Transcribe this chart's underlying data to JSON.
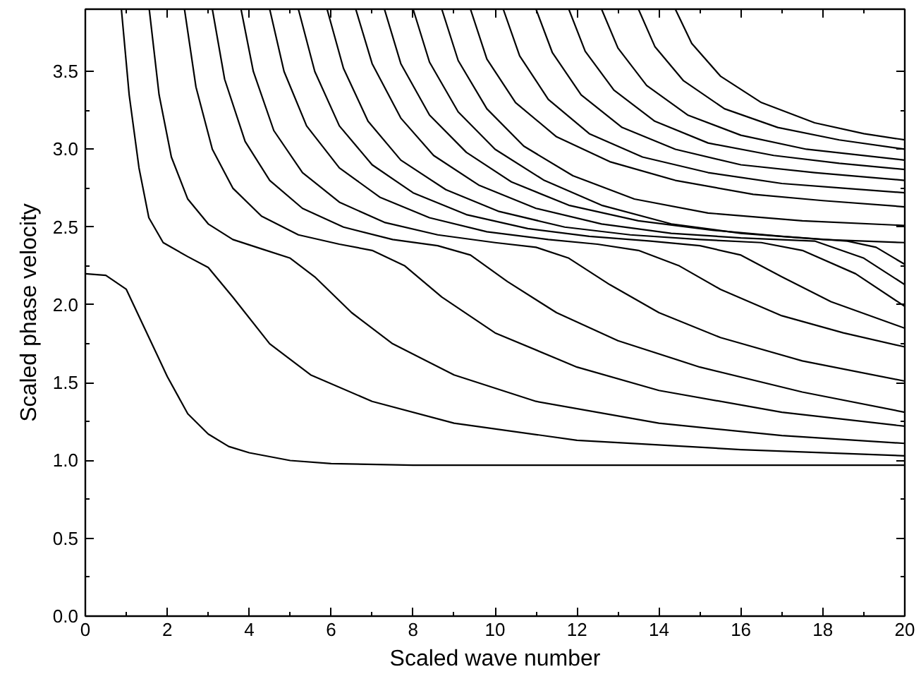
{
  "chart_data": {
    "type": "line",
    "xlabel": "Scaled wave number",
    "ylabel": "Scaled phase velocity",
    "xlim": [
      0,
      20
    ],
    "ylim": [
      0,
      3.9
    ],
    "xticks": [
      0,
      2,
      4,
      6,
      8,
      10,
      12,
      14,
      16,
      18,
      20
    ],
    "yticks": [
      {
        "value": 0,
        "label": "0.0"
      },
      0.5,
      {
        "value": 1,
        "label": "1.0"
      },
      1.5,
      {
        "value": 2,
        "label": "2.0"
      },
      2.5,
      {
        "value": 3,
        "label": "3.0"
      },
      3.5
    ],
    "grid": false,
    "marker": "none",
    "line_style": "solid",
    "series": [
      {
        "color": "#000000",
        "x": [
          0,
          0.5,
          1,
          1.5,
          2,
          2.5,
          3,
          3.5,
          4,
          5,
          6,
          8,
          10,
          14,
          20
        ],
        "values": [
          2.2,
          2.19,
          2.1,
          1.82,
          1.54,
          1.3,
          1.17,
          1.09,
          1.05,
          1.0,
          0.98,
          0.97,
          0.97,
          0.97,
          0.97
        ]
      },
      {
        "color": "#000000",
        "x": [
          0.88,
          1.07,
          1.31,
          1.55,
          1.9,
          2.5,
          3.0,
          3.6,
          4.5,
          5.5,
          7,
          9,
          12,
          16,
          20
        ],
        "values": [
          3.9,
          3.35,
          2.88,
          2.56,
          2.4,
          2.31,
          2.24,
          2.05,
          1.75,
          1.55,
          1.38,
          1.24,
          1.13,
          1.07,
          1.03
        ]
      },
      {
        "color": "#000000",
        "x": [
          1.56,
          1.8,
          2.1,
          2.5,
          3.0,
          3.6,
          4.3,
          5.0,
          5.6,
          6.5,
          7.5,
          9,
          11,
          14,
          17,
          20
        ],
        "values": [
          3.9,
          3.35,
          2.95,
          2.68,
          2.52,
          2.42,
          2.36,
          2.3,
          2.18,
          1.95,
          1.75,
          1.55,
          1.38,
          1.24,
          1.16,
          1.11
        ]
      },
      {
        "color": "#000000",
        "x": [
          2.42,
          2.7,
          3.1,
          3.6,
          4.3,
          5.2,
          6.2,
          7.0,
          7.8,
          8.7,
          10,
          12,
          14,
          17,
          20
        ],
        "values": [
          3.9,
          3.4,
          3.0,
          2.75,
          2.57,
          2.45,
          2.39,
          2.35,
          2.25,
          2.05,
          1.82,
          1.6,
          1.45,
          1.31,
          1.22
        ]
      },
      {
        "color": "#000000",
        "x": [
          3.1,
          3.4,
          3.9,
          4.5,
          5.3,
          6.3,
          7.5,
          8.6,
          9.4,
          10.3,
          11.5,
          13,
          15,
          17.5,
          20
        ],
        "values": [
          3.9,
          3.45,
          3.05,
          2.8,
          2.62,
          2.5,
          2.42,
          2.38,
          2.32,
          2.15,
          1.95,
          1.77,
          1.6,
          1.44,
          1.31
        ]
      },
      {
        "color": "#000000",
        "x": [
          3.8,
          4.1,
          4.6,
          5.3,
          6.2,
          7.3,
          8.6,
          10,
          11,
          11.8,
          12.8,
          14,
          15.5,
          17.5,
          20
        ],
        "values": [
          3.9,
          3.5,
          3.12,
          2.85,
          2.66,
          2.53,
          2.45,
          2.4,
          2.37,
          2.3,
          2.13,
          1.95,
          1.79,
          1.64,
          1.51
        ]
      },
      {
        "color": "#000000",
        "x": [
          4.5,
          4.85,
          5.4,
          6.2,
          7.2,
          8.4,
          9.8,
          11.3,
          12.5,
          13.5,
          14.5,
          15.5,
          17,
          18.5,
          20
        ],
        "values": [
          3.9,
          3.5,
          3.15,
          2.88,
          2.69,
          2.56,
          2.47,
          2.42,
          2.39,
          2.35,
          2.25,
          2.1,
          1.93,
          1.82,
          1.73
        ]
      },
      {
        "color": "#000000",
        "x": [
          5.2,
          5.6,
          6.2,
          7,
          8,
          9.3,
          10.8,
          12.3,
          13.8,
          15,
          16,
          17,
          18.2,
          20
        ],
        "values": [
          3.9,
          3.5,
          3.15,
          2.9,
          2.72,
          2.58,
          2.49,
          2.44,
          2.41,
          2.38,
          2.32,
          2.18,
          2.02,
          1.85
        ]
      },
      {
        "color": "#000000",
        "x": [
          5.9,
          6.3,
          6.9,
          7.7,
          8.8,
          10.1,
          11.7,
          13.3,
          15,
          16.5,
          17.5,
          18.8,
          20
        ],
        "values": [
          3.9,
          3.52,
          3.18,
          2.93,
          2.74,
          2.6,
          2.5,
          2.45,
          2.42,
          2.4,
          2.35,
          2.2,
          1.99
        ]
      },
      {
        "color": "#000000",
        "x": [
          6.6,
          7.0,
          7.7,
          8.5,
          9.6,
          11,
          12.6,
          14.3,
          16,
          17.8,
          19,
          20
        ],
        "values": [
          3.9,
          3.55,
          3.2,
          2.96,
          2.77,
          2.62,
          2.52,
          2.46,
          2.43,
          2.41,
          2.3,
          2.13
        ]
      },
      {
        "color": "#000000",
        "x": [
          7.3,
          7.7,
          8.4,
          9.3,
          10.4,
          11.8,
          13.5,
          15.3,
          17,
          18.6,
          19.3,
          20
        ],
        "values": [
          3.9,
          3.55,
          3.22,
          2.98,
          2.79,
          2.64,
          2.54,
          2.48,
          2.44,
          2.41,
          2.37,
          2.26
        ]
      },
      {
        "color": "#000000",
        "x": [
          8.0,
          8.4,
          9.1,
          10,
          11.2,
          12.6,
          14.3,
          16,
          18,
          20
        ],
        "values": [
          3.9,
          3.56,
          3.24,
          3.0,
          2.8,
          2.64,
          2.52,
          2.46,
          2.42,
          2.4
        ]
      },
      {
        "color": "#000000",
        "x": [
          8.7,
          9.1,
          9.8,
          10.7,
          11.9,
          13.4,
          15.2,
          17.5,
          20
        ],
        "values": [
          3.9,
          3.57,
          3.26,
          3.02,
          2.83,
          2.68,
          2.59,
          2.54,
          2.51
        ]
      },
      {
        "color": "#000000",
        "x": [
          9.4,
          9.8,
          10.5,
          11.5,
          12.8,
          14.4,
          16.3,
          18,
          20
        ],
        "values": [
          3.9,
          3.58,
          3.3,
          3.08,
          2.92,
          2.8,
          2.71,
          2.67,
          2.63
        ]
      },
      {
        "color": "#000000",
        "x": [
          10.2,
          10.6,
          11.3,
          12.3,
          13.6,
          15.2,
          17,
          18.5,
          20
        ],
        "values": [
          3.9,
          3.6,
          3.32,
          3.1,
          2.95,
          2.85,
          2.78,
          2.75,
          2.72
        ]
      },
      {
        "color": "#000000",
        "x": [
          11.0,
          11.4,
          12.1,
          13.1,
          14.4,
          16,
          17.8,
          20
        ],
        "values": [
          3.9,
          3.62,
          3.35,
          3.14,
          3.0,
          2.9,
          2.85,
          2.8
        ]
      },
      {
        "color": "#000000",
        "x": [
          11.8,
          12.2,
          12.9,
          13.9,
          15.2,
          16.8,
          18.4,
          20
        ],
        "values": [
          3.9,
          3.63,
          3.38,
          3.18,
          3.04,
          2.96,
          2.91,
          2.87
        ]
      },
      {
        "color": "#000000",
        "x": [
          12.6,
          13.0,
          13.7,
          14.7,
          16,
          17.6,
          20
        ],
        "values": [
          3.9,
          3.65,
          3.41,
          3.22,
          3.09,
          3.0,
          2.93
        ]
      },
      {
        "color": "#000000",
        "x": [
          13.5,
          13.9,
          14.6,
          15.6,
          16.9,
          18.4,
          20
        ],
        "values": [
          3.9,
          3.66,
          3.44,
          3.26,
          3.14,
          3.06,
          3.0
        ]
      },
      {
        "color": "#000000",
        "x": [
          14.4,
          14.8,
          15.5,
          16.5,
          17.8,
          19,
          20
        ],
        "values": [
          3.9,
          3.68,
          3.47,
          3.3,
          3.17,
          3.1,
          3.06
        ]
      }
    ]
  }
}
